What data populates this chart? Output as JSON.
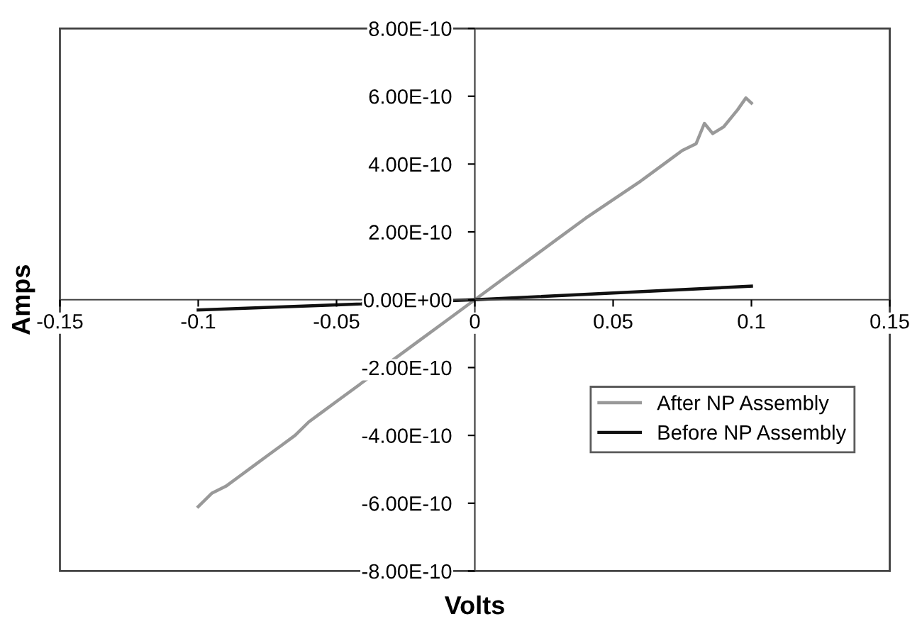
{
  "chart_data": {
    "type": "line",
    "xlabel": "Volts",
    "ylabel": "Amps",
    "xlim": [
      -0.15,
      0.15
    ],
    "xticks": [
      -0.15,
      -0.1,
      -0.05,
      0,
      0.05,
      0.1,
      0.15
    ],
    "ylim": [
      -8e-10,
      8e-10
    ],
    "yticks": [
      {
        "value": -8e-10,
        "label": "-8.00E-10"
      },
      {
        "value": -6e-10,
        "label": "-6.00E-10"
      },
      {
        "value": -4e-10,
        "label": "-4.00E-10"
      },
      {
        "value": -2e-10,
        "label": "-2.00E-10"
      },
      {
        "value": 0,
        "label": "0.00E+00"
      },
      {
        "value": 2e-10,
        "label": "2.00E-10"
      },
      {
        "value": 4e-10,
        "label": "4.00E-10"
      },
      {
        "value": 6e-10,
        "label": "6.00E-10"
      },
      {
        "value": 8e-10,
        "label": "8.00E-10"
      }
    ],
    "legend": "bottom right",
    "grid": false,
    "marker": "none",
    "line_style": "solid",
    "series": [
      {
        "name": "After NP Assembly",
        "color": "#999999",
        "x": [
          -0.1,
          -0.095,
          -0.09,
          -0.085,
          -0.08,
          -0.075,
          -0.07,
          -0.065,
          -0.06,
          -0.055,
          -0.05,
          -0.04,
          -0.03,
          -0.02,
          -0.01,
          0,
          0.01,
          0.02,
          0.03,
          0.04,
          0.05,
          0.06,
          0.07,
          0.075,
          0.08,
          0.083,
          0.086,
          0.09,
          0.095,
          0.098,
          0.1
        ],
        "values": [
          -6.1e-10,
          -5.7e-10,
          -5.5e-10,
          -5.2e-10,
          -4.9e-10,
          -4.6e-10,
          -4.3e-10,
          -4e-10,
          -3.6e-10,
          -3.3e-10,
          -3e-10,
          -2.4e-10,
          -1.8e-10,
          -1.2e-10,
          -6e-11,
          0,
          6e-11,
          1.2e-10,
          1.8e-10,
          2.4e-10,
          2.95e-10,
          3.5e-10,
          4.1e-10,
          4.4e-10,
          4.6e-10,
          5.2e-10,
          4.9e-10,
          5.1e-10,
          5.6e-10,
          5.95e-10,
          5.8e-10
        ]
      },
      {
        "name": "Before NP Assembly",
        "color": "#111111",
        "x": [
          -0.1,
          -0.05,
          0,
          0.05,
          0.1
        ],
        "values": [
          -3e-11,
          -1.5e-11,
          0,
          2e-11,
          4e-11
        ]
      }
    ]
  }
}
